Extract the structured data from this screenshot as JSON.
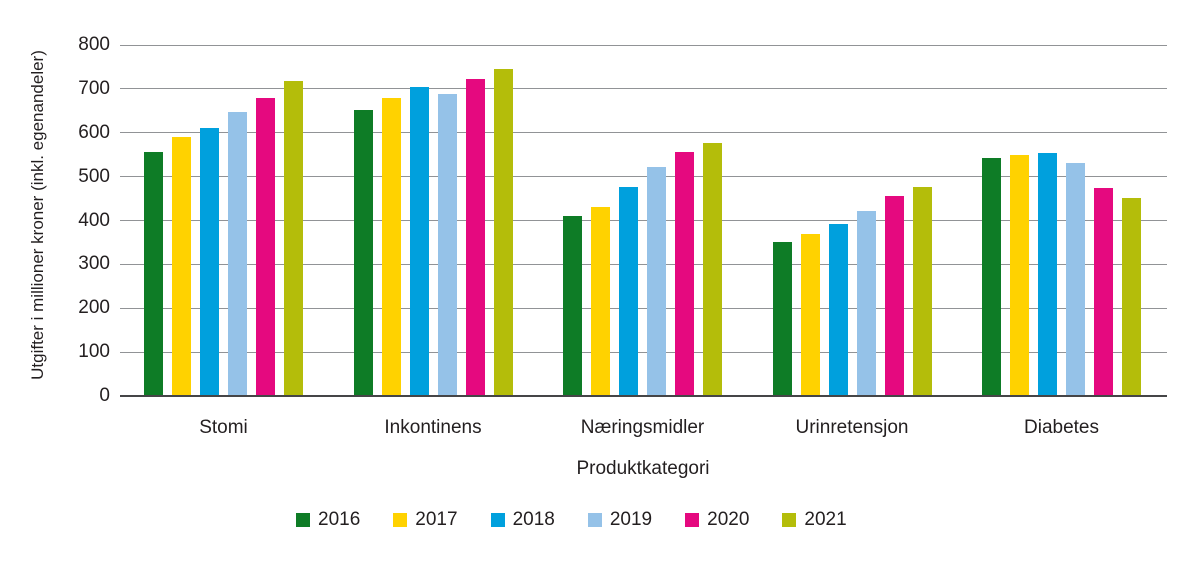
{
  "chart_data": {
    "type": "bar",
    "title": "",
    "xlabel": "Produktkategori",
    "ylabel": "Utgifter i millioner kroner (inkl. egenandeler)",
    "categories": [
      "Stomi",
      "Inkontinens",
      "Næringsmidler",
      "Urinretensjon",
      "Diabetes"
    ],
    "series": [
      {
        "name": "2016",
        "color": "#0e7c26",
        "values": [
          557,
          652,
          410,
          350,
          542
        ]
      },
      {
        "name": "2017",
        "color": "#ffd200",
        "values": [
          591,
          680,
          430,
          370,
          550
        ]
      },
      {
        "name": "2018",
        "color": "#00a0dd",
        "values": [
          610,
          704,
          477,
          392,
          555
        ]
      },
      {
        "name": "2019",
        "color": "#95c2e8",
        "values": [
          647,
          688,
          523,
          422,
          531
        ]
      },
      {
        "name": "2020",
        "color": "#e5097f",
        "values": [
          680,
          723,
          557,
          455,
          474
        ]
      },
      {
        "name": "2021",
        "color": "#b4bd0a",
        "values": [
          719,
          745,
          576,
          476,
          451
        ]
      }
    ],
    "ylim": [
      0,
      800
    ],
    "yticks": [
      0,
      100,
      200,
      300,
      400,
      500,
      600,
      700,
      800
    ],
    "grid": true,
    "legend_position": "bottom",
    "background_color": "#ffffff",
    "text_color": "#231f20",
    "gridline_color": "#919396",
    "axis_line_color": "#454547"
  }
}
